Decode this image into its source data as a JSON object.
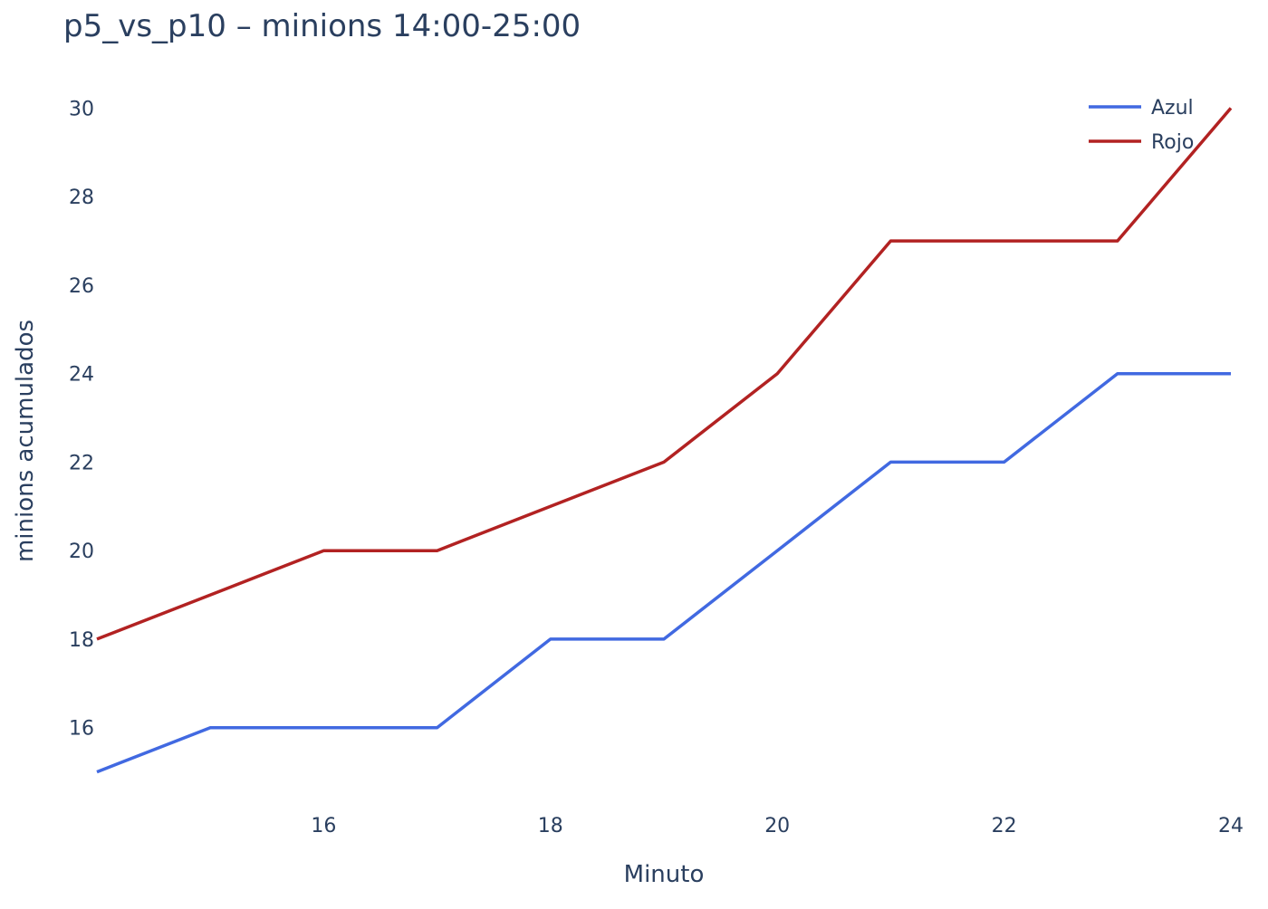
{
  "chart_data": {
    "type": "line",
    "title": "p5_vs_p10 – minions 14:00-25:00",
    "xlabel": "Minuto",
    "ylabel": "minions acumulados",
    "xlim": [
      14,
      24
    ],
    "ylim": [
      14.5,
      30.5
    ],
    "x_ticks": [
      16,
      18,
      20,
      22,
      24
    ],
    "y_ticks": [
      16,
      18,
      20,
      22,
      24,
      26,
      28,
      30
    ],
    "grid": false,
    "legend_position": "top-right",
    "x": [
      14,
      15,
      16,
      17,
      18,
      19,
      20,
      21,
      22,
      23,
      24
    ],
    "series": [
      {
        "name": "Azul",
        "color": "#4169e1",
        "values": [
          15,
          16,
          16,
          16,
          18,
          18,
          20,
          22,
          22,
          24,
          24
        ]
      },
      {
        "name": "Rojo",
        "color": "#b22222",
        "values": [
          18,
          19,
          20,
          20,
          21,
          22,
          24,
          27,
          27,
          27,
          30
        ]
      }
    ]
  }
}
